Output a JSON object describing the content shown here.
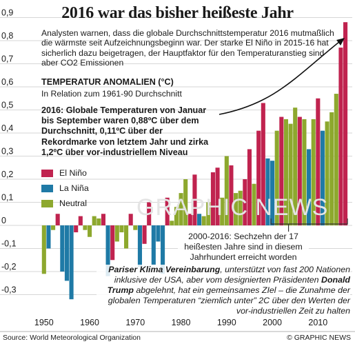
{
  "title": "2016 war das bisher heißeste Jahr",
  "intro_text": "Analysten warnen, dass die globale Durchschnittstemperatur 2016 mutmaßlich die wärmste seit Aufzeichnungsbeginn war. Der starke El Niño in 2015-16 hat sicherlich dazu beigetragen, der Hauptfaktor für den Temperaturanstieg sind aber CO2 Emissionen",
  "anomaly_title": "TEMPERATUR ANOMALIEN (°C)",
  "anomaly_subtitle": "In Relation zum 1961-90 Durchschnitt",
  "highlight_2016": "2016: Globale Temperaturen von Januar bis September waren 0,88ºC über dem Durchschnitt, 0,11ºC über der Rekordmarke von letztem Jahr und zirka 1,2ºC über vor-industriellem Niveau",
  "legend": [
    {
      "label": "El Niño",
      "color": "#c0234f"
    },
    {
      "label": "La Niña",
      "color": "#1f7aa6"
    },
    {
      "label": "Neutral",
      "color": "#8da82e"
    }
  ],
  "note_2000_2016": "2000-2016: Sechzehn der 17 heißesten Jahre sind in diesem Jahrhundert erreicht worden",
  "note_paris": {
    "bold_1": "Pariser Klima Vereinbarung",
    "text_1": ", unterstützt von fast 200 Nationen inklusive der USA, aber vom designierten Präsidenten ",
    "bold_2": "Donald Trump",
    "text_2": " abgelehnt, hat ein gemeinsames ZIel – die Zunahme der globalen Temperaturen “ziemlich unter” 2C über den Werten der vor-industriellen Zeit zu halten"
  },
  "source": "Source: World Meteorological Organization",
  "credit": "© GRAPHIC NEWS",
  "watermark": "GRAPHIC NEWS",
  "chart_data": {
    "type": "bar",
    "x": [
      1950,
      1951,
      1952,
      1953,
      1954,
      1955,
      1956,
      1957,
      1958,
      1959,
      1960,
      1961,
      1962,
      1963,
      1964,
      1965,
      1966,
      1967,
      1968,
      1969,
      1970,
      1971,
      1972,
      1973,
      1974,
      1975,
      1976,
      1977,
      1978,
      1979,
      1980,
      1981,
      1982,
      1983,
      1984,
      1985,
      1986,
      1987,
      1988,
      1989,
      1990,
      1991,
      1992,
      1993,
      1994,
      1995,
      1996,
      1997,
      1998,
      1999,
      2000,
      2001,
      2002,
      2003,
      2004,
      2005,
      2006,
      2007,
      2008,
      2009,
      2010,
      2011,
      2012,
      2013,
      2014,
      2015,
      2016
    ],
    "values": [
      -0.21,
      -0.1,
      -0.02,
      0.05,
      -0.2,
      -0.24,
      -0.32,
      -0.03,
      0.04,
      -0.02,
      -0.05,
      0.04,
      0.03,
      0.05,
      -0.22,
      -0.15,
      -0.07,
      -0.03,
      -0.1,
      0.05,
      -0.02,
      -0.18,
      -0.08,
      0.1,
      -0.17,
      -0.07,
      -0.21,
      0.12,
      0.02,
      0.08,
      0.14,
      0.2,
      0.05,
      0.22,
      0.05,
      0.04,
      0.1,
      0.23,
      0.25,
      0.12,
      0.3,
      0.26,
      0.14,
      0.15,
      0.2,
      0.33,
      0.18,
      0.41,
      0.53,
      0.29,
      0.28,
      0.41,
      0.47,
      0.46,
      0.44,
      0.51,
      0.47,
      0.46,
      0.33,
      0.46,
      0.55,
      0.41,
      0.45,
      0.49,
      0.57,
      0.77,
      0.88
    ],
    "enso": [
      "N",
      "L",
      "N",
      "E",
      "L",
      "L",
      "L",
      "E",
      "E",
      "N",
      "N",
      "N",
      "N",
      "E",
      "L",
      "E",
      "N",
      "N",
      "N",
      "E",
      "N",
      "L",
      "E",
      "E",
      "L",
      "L",
      "L",
      "E",
      "N",
      "N",
      "N",
      "N",
      "E",
      "E",
      "L",
      "N",
      "N",
      "E",
      "E",
      "N",
      "N",
      "E",
      "N",
      "N",
      "E",
      "E",
      "N",
      "E",
      "E",
      "L",
      "L",
      "N",
      "E",
      "N",
      "N",
      "N",
      "E",
      "N",
      "L",
      "N",
      "E",
      "L",
      "N",
      "N",
      "N",
      "E",
      "E"
    ],
    "categories_legend": [
      "El Niño",
      "La Niña",
      "Neutral"
    ],
    "y_ticks": [
      -0.3,
      -0.2,
      -0.1,
      0,
      0.1,
      0.2,
      0.3,
      0.4,
      0.5,
      0.6,
      0.7,
      0.8,
      0.9
    ],
    "y_tick_labels": [
      "-0,3",
      "-0,2",
      "-0,1",
      "0",
      "0,1",
      "0,2",
      "0,3",
      "0,4",
      "0,5",
      "0,6",
      "0,7",
      "0,8",
      "0,9"
    ],
    "x_ticks": [
      1950,
      1960,
      1970,
      1980,
      1990,
      2000,
      2010
    ],
    "x_tick_labels": [
      "1950",
      "1960",
      "1970",
      "1980",
      "1990",
      "2000",
      "2010"
    ],
    "ylim": [
      -0.34,
      0.95
    ],
    "xlim": [
      1945.8,
      2017.5
    ],
    "grid": "horizontal",
    "colors": {
      "E": "#c0234f",
      "L": "#1f7aa6",
      "N": "#8da82e"
    }
  }
}
